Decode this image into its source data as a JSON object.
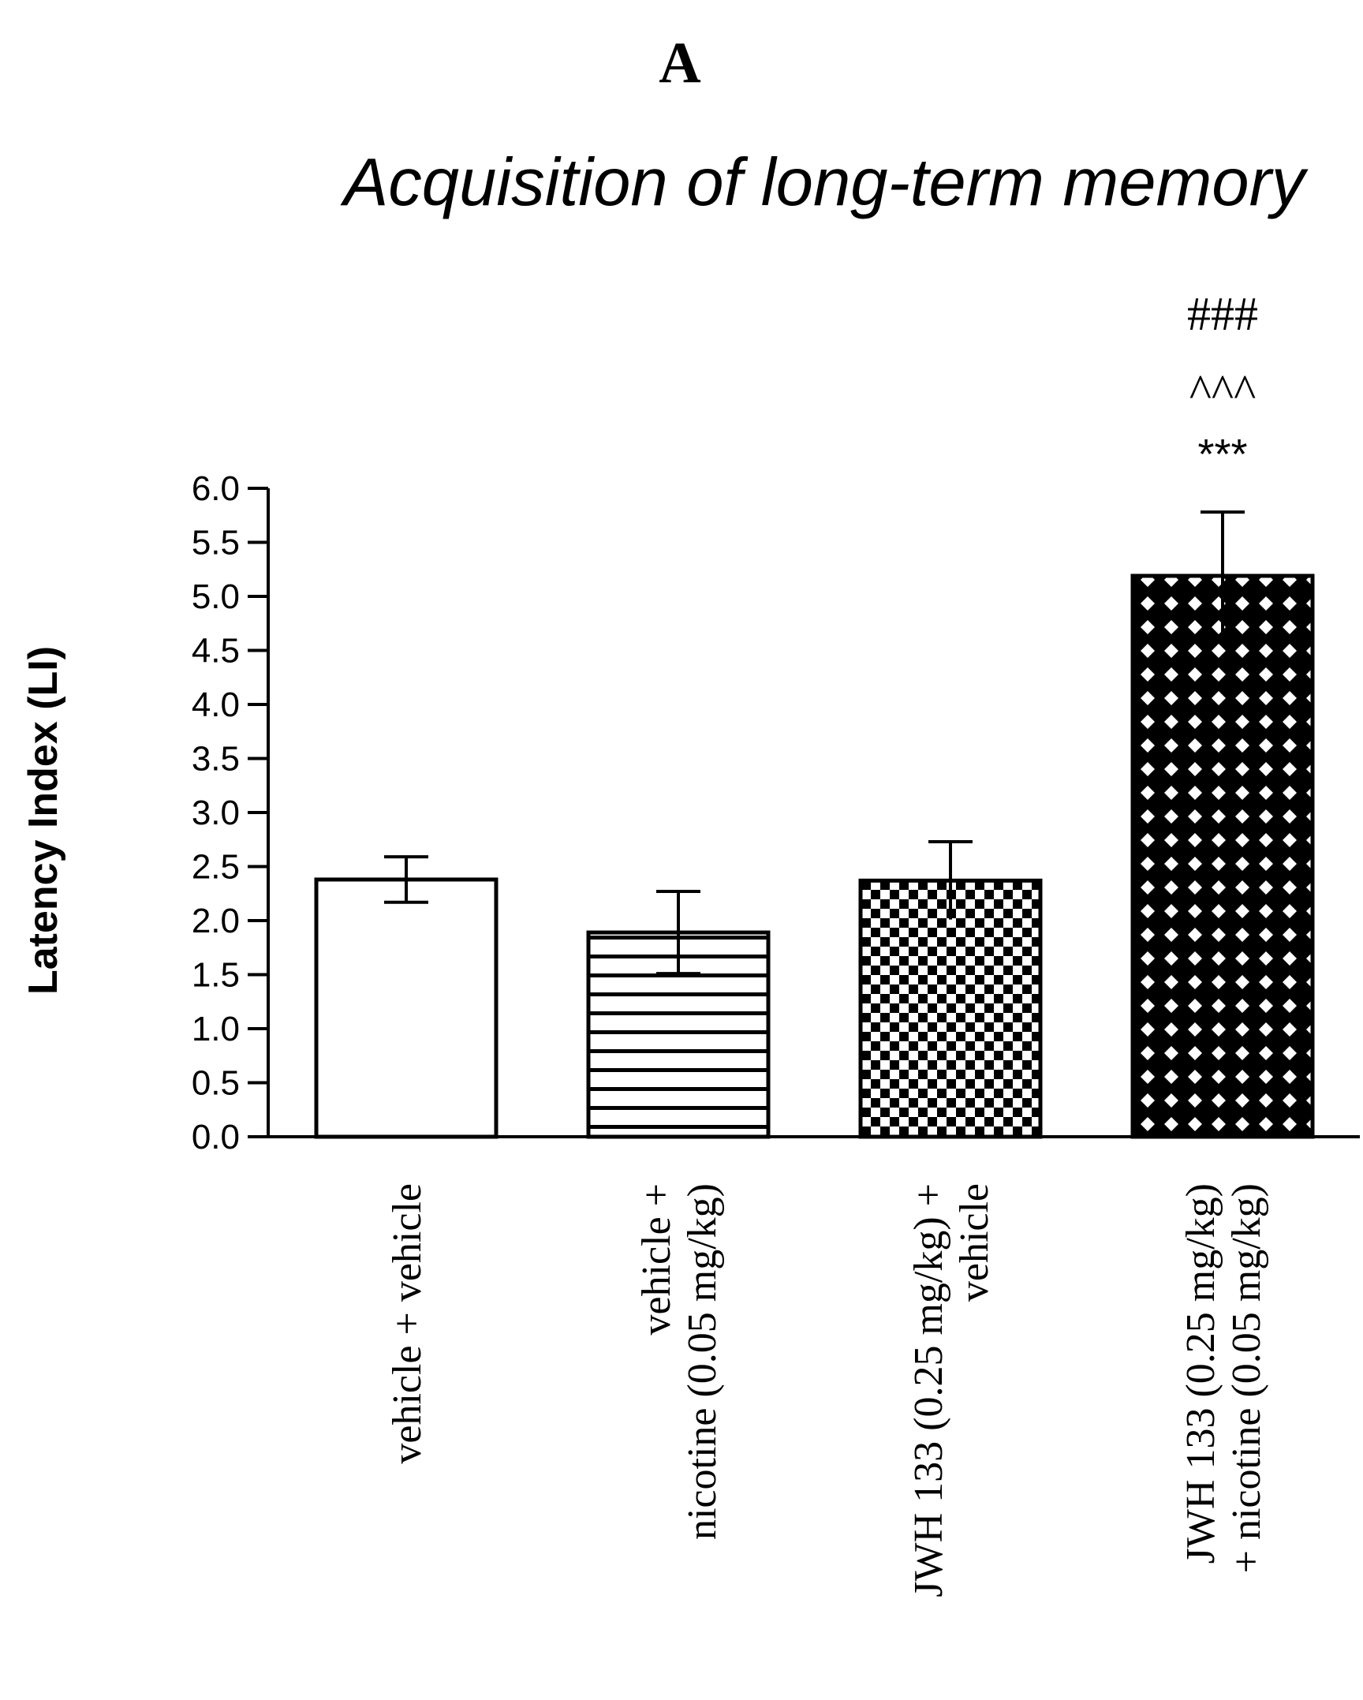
{
  "panel_label": "A",
  "chart_data": {
    "type": "bar",
    "title": "Acquisition of long-term memory",
    "xlabel": "",
    "ylabel": "Latency Index (LI)",
    "ylim": [
      0,
      6
    ],
    "yticks": [
      "0.0",
      "0.5",
      "1.0",
      "1.5",
      "2.0",
      "2.5",
      "3.0",
      "3.5",
      "4.0",
      "4.5",
      "5.0",
      "5.5",
      "6.0"
    ],
    "grid": false,
    "legend": "none",
    "categories": [
      [
        "vehicle + vehicle"
      ],
      [
        "vehicle +",
        "nicotine (0.05 mg/kg)"
      ],
      [
        "JWH 133 (0.25 mg/kg) +",
        "vehicle"
      ],
      [
        "JWH 133 (0.25 mg/kg)",
        "+ nicotine (0.05 mg/kg)"
      ]
    ],
    "values": [
      2.38,
      1.89,
      2.37,
      5.19
    ],
    "errors": [
      0.21,
      0.38,
      0.36,
      0.59
    ],
    "patterns": [
      "none",
      "horizontal-lines",
      "checker",
      "diamond-lattice"
    ],
    "annotations": [
      {
        "bar": 3,
        "lines": [
          "###",
          "^^^",
          "***"
        ]
      }
    ],
    "colors": {
      "bar_fill": "#ffffff",
      "ink": "#000000"
    }
  }
}
